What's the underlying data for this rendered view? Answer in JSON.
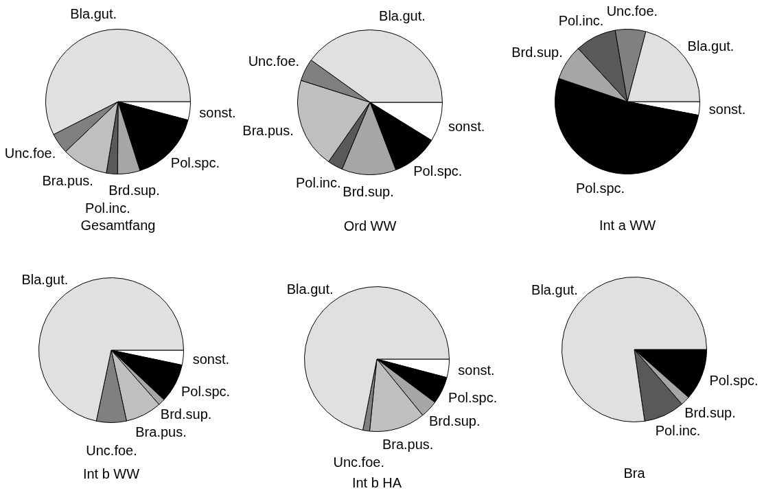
{
  "chart_data": [
    {
      "type": "pie",
      "title": "Gesamtfang",
      "categories": [
        "sonst.",
        "Pol.spc.",
        "Brd.sup.",
        "Pol.inc.",
        "Bra.pus.",
        "Unc.foe.",
        "Bla.gut."
      ],
      "values": [
        4.1,
        16.0,
        5.0,
        2.5,
        10.3,
        4.6,
        57.5
      ],
      "colors": [
        "#ffffff",
        "#000000",
        "#a6a6a6",
        "#595959",
        "#bfbfbf",
        "#808080",
        "#e0e0e0"
      ],
      "legend": false
    },
    {
      "type": "pie",
      "title": "Ord WW",
      "categories": [
        "sonst.",
        "Pol.spc.",
        "Brd.sup.",
        "Pol.inc.",
        "Bra.pus.",
        "Unc.foe.",
        "Bla.gut."
      ],
      "values": [
        8.8,
        10.4,
        12.1,
        3.4,
        20.2,
        5.0,
        40.1
      ],
      "colors": [
        "#ffffff",
        "#000000",
        "#a6a6a6",
        "#595959",
        "#bfbfbf",
        "#808080",
        "#e0e0e0"
      ],
      "legend": false
    },
    {
      "type": "pie",
      "title": "Int a WW",
      "categories": [
        "sonst.",
        "Pol.spc.",
        "Brd.sup.",
        "Pol.inc.",
        "Unc.foe.",
        "Bla.gut."
      ],
      "values": [
        3.0,
        52.2,
        7.9,
        9.2,
        6.8,
        20.9
      ],
      "colors": [
        "#ffffff",
        "#000000",
        "#a6a6a6",
        "#595959",
        "#808080",
        "#e0e0e0"
      ],
      "legend": false
    },
    {
      "type": "pie",
      "title": "Int b WW",
      "categories": [
        "sonst.",
        "Pol.spc.",
        "Brd.sup.",
        "Bra.pus.",
        "Unc.foe.",
        "Bla.gut."
      ],
      "values": [
        3.3,
        8.7,
        1.5,
        8.1,
        6.7,
        71.7
      ],
      "colors": [
        "#ffffff",
        "#000000",
        "#a6a6a6",
        "#bfbfbf",
        "#808080",
        "#e0e0e0"
      ],
      "legend": false
    },
    {
      "type": "pie",
      "title": "Int b HA",
      "categories": [
        "sonst.",
        "Pol.spc.",
        "Brd.sup.",
        "Bra.pus.",
        "Unc.foe.",
        "Bla.gut."
      ],
      "values": [
        4.1,
        6.1,
        3.9,
        12.5,
        1.5,
        71.9
      ],
      "colors": [
        "#ffffff",
        "#000000",
        "#a6a6a6",
        "#bfbfbf",
        "#808080",
        "#e0e0e0"
      ],
      "legend": false
    },
    {
      "type": "pie",
      "title": "Bra",
      "categories": [
        "Pol.spc.",
        "Brd.sup.",
        "Pol.inc.",
        "Bla.gut."
      ],
      "values": [
        11.5,
        2.1,
        9.1,
        77.3
      ],
      "colors": [
        "#000000",
        "#a6a6a6",
        "#595959",
        "#e0e0e0"
      ],
      "legend": false
    }
  ]
}
